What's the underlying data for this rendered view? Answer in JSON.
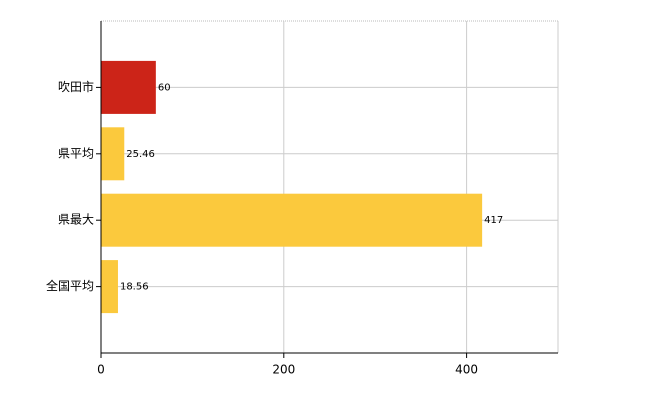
{
  "chart_data": {
    "type": "bar",
    "orientation": "horizontal",
    "categories": [
      "吹田市",
      "県平均",
      "県最大",
      "全国平均"
    ],
    "values": [
      60,
      25.46,
      417,
      18.56
    ],
    "colors": [
      "#cc2418",
      "#fbc93d",
      "#fbc93d",
      "#fbc93d"
    ],
    "xlim": [
      0,
      500
    ],
    "xticks": [
      0,
      200,
      400
    ],
    "grid": true
  }
}
